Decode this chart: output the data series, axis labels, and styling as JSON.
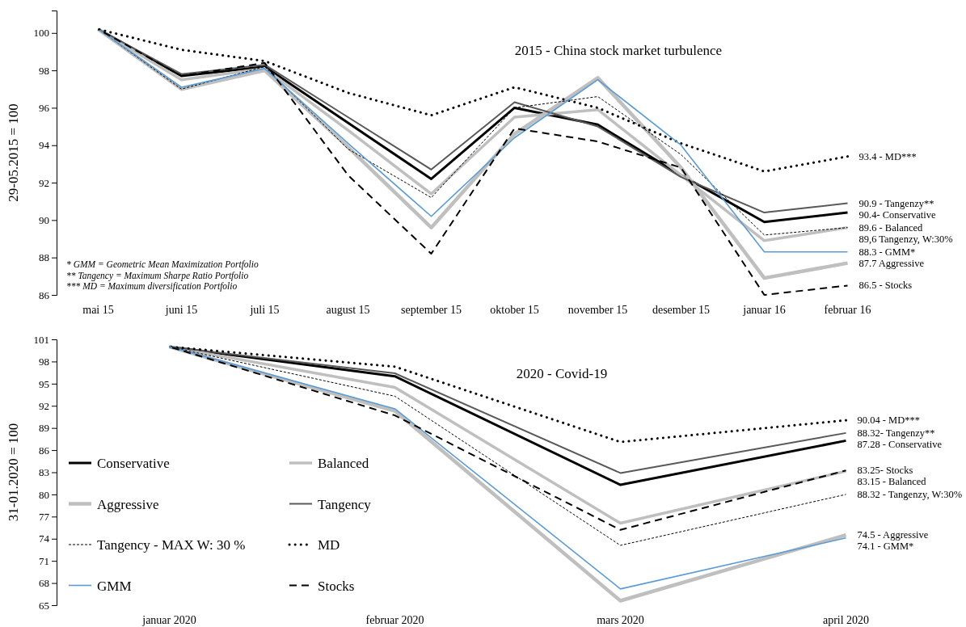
{
  "chart_data": [
    {
      "type": "line",
      "title": "2015 - China stock market turbulence",
      "ylabel": "29-05.2015 = 100",
      "categories": [
        "mai 15",
        "juni 15",
        "juli 15",
        "august 15",
        "september 15",
        "oktober 15",
        "november 15",
        "desember 15",
        "januar 16",
        "februar 16"
      ],
      "ylim": [
        86,
        101.2
      ],
      "yticks": [
        86,
        88,
        90,
        92,
        94,
        96,
        98,
        100
      ],
      "grid": false,
      "legend": false,
      "series": [
        {
          "color": "#000000",
          "line_style": "solid",
          "values": [
            100.2,
            97.7,
            98.2,
            95.2,
            92.2,
            96.0,
            95.1,
            92.4,
            89.9,
            90.4
          ]
        },
        {
          "color": "#bfbfbf",
          "line_style": "solid",
          "values": [
            100.2,
            97.5,
            98.1,
            94.8,
            91.4,
            95.5,
            95.9,
            92.4,
            88.9,
            89.6
          ]
        },
        {
          "color": "#bfbfbf",
          "line_style": "solid",
          "values": [
            100.2,
            97.0,
            98.0,
            93.9,
            89.6,
            94.6,
            97.6,
            92.8,
            86.9,
            87.7
          ]
        },
        {
          "color": "#595959",
          "line_style": "solid",
          "values": [
            100.2,
            97.8,
            98.3,
            95.5,
            92.7,
            96.3,
            95.0,
            92.3,
            90.4,
            90.9
          ]
        },
        {
          "color": "#000000",
          "line_style": "dashed",
          "values": [
            100.2,
            97.0,
            98.2,
            93.8,
            91.2,
            96.0,
            96.6,
            93.5,
            89.2,
            89.6
          ]
        },
        {
          "color": "#000000",
          "line_style": "dotted",
          "values": [
            100.2,
            99.1,
            98.5,
            96.8,
            95.6,
            97.1,
            96.0,
            94.1,
            92.6,
            93.4
          ]
        },
        {
          "color": "#5b9bd5",
          "line_style": "solid",
          "values": [
            100.2,
            97.1,
            98.1,
            94.1,
            90.2,
            94.4,
            97.5,
            94.0,
            88.3,
            88.3
          ]
        },
        {
          "color": "#000000",
          "line_style": "dashed",
          "values": [
            100.2,
            97.7,
            98.4,
            92.4,
            88.2,
            94.9,
            94.2,
            92.8,
            86.0,
            86.5
          ]
        }
      ],
      "annotations": [
        {
          "text": "93.4 - MD***",
          "x": "februar 16",
          "y": 93.4
        },
        {
          "text": "90.9 - Tangenzy**",
          "x": "februar 16",
          "y": 90.9
        },
        {
          "text": "90.4- Conservative",
          "x": "februar 16",
          "y": 90.4
        },
        {
          "text": "89.6 - Balanced",
          "x": "februar 16",
          "y": 89.6
        },
        {
          "text": "89,6 Tangenzy, W:30%",
          "x": "februar 16",
          "y": 89.6
        },
        {
          "text": "88.3 - GMM*",
          "x": "februar 16",
          "y": 88.3
        },
        {
          "text": "87.7 Aggressive",
          "x": "februar 16",
          "y": 87.7
        },
        {
          "text": "86.5 - Stocks",
          "x": "februar 16",
          "y": 86.5
        },
        "* GMM = Geometric Mean Maximization Portfolio",
        "** Tangency = Maximum Sharpe Ratio Portfolio",
        "*** MD = Maximum diversification Portfolio"
      ]
    },
    {
      "type": "line",
      "title": "2020 - Covid-19",
      "ylabel": "31-01.2020 = 100",
      "categories": [
        "januar 2020",
        "februar 2020",
        "mars 2020",
        "april 2020"
      ],
      "ylim": [
        65,
        101
      ],
      "yticks": [
        65,
        68,
        71,
        74,
        77,
        80,
        83,
        86,
        89,
        92,
        95,
        98,
        101
      ],
      "grid": false,
      "legend": "left",
      "series": [
        {
          "name": "Conservative",
          "color": "#000000",
          "line_style": "solid",
          "values": [
            100,
            96.0,
            81.3,
            87.28
          ]
        },
        {
          "name": "Balanced",
          "color": "#bfbfbf",
          "line_style": "solid",
          "values": [
            100,
            94.5,
            76.1,
            83.15
          ]
        },
        {
          "name": "Aggressive",
          "color": "#bfbfbf",
          "line_style": "solid",
          "values": [
            100,
            91.3,
            65.6,
            74.5
          ]
        },
        {
          "name": "Tangency",
          "color": "#595959",
          "line_style": "solid",
          "values": [
            100,
            96.4,
            82.9,
            88.32
          ]
        },
        {
          "name": "Tangency - MAX W: 30 %",
          "color": "#000000",
          "line_style": "dashed",
          "values": [
            100,
            93.3,
            73.1,
            80.0
          ]
        },
        {
          "name": "MD",
          "color": "#000000",
          "line_style": "dotted",
          "values": [
            100,
            97.3,
            87.1,
            90.04
          ]
        },
        {
          "name": "GMM",
          "color": "#5b9bd5",
          "line_style": "solid",
          "values": [
            100,
            91.6,
            67.2,
            74.1
          ]
        },
        {
          "name": "Stocks",
          "color": "#000000",
          "line_style": "dashed",
          "values": [
            100,
            90.7,
            75.2,
            83.25
          ]
        }
      ],
      "annotations": [
        {
          "text": "90.04 - MD***",
          "x": "april 2020",
          "y": 90.04
        },
        {
          "text": "88.32- Tangenzy**",
          "x": "april 2020",
          "y": 88.32
        },
        {
          "text": "87.28 - Conservative",
          "x": "april 2020",
          "y": 87.28
        },
        {
          "text": "83.25- Stocks",
          "x": "april 2020",
          "y": 83.25
        },
        {
          "text": "83.15 - Balanced",
          "x": "april 2020",
          "y": 83.15
        },
        {
          "text": "88.32 - Tangenzy, W:30%",
          "x": "april 2020",
          "y": 80.0
        },
        {
          "text": "74.5 - Aggressive",
          "x": "april 2020",
          "y": 74.5
        },
        {
          "text": "74.1 - GMM*",
          "x": "april 2020",
          "y": 74.1
        }
      ]
    }
  ]
}
